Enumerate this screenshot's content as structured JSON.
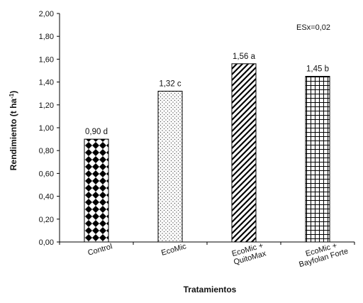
{
  "chart_data": {
    "type": "bar",
    "xlabel": "Tratamientos",
    "ylabel": "Rendimiento (t ha⁻¹)",
    "ylim": [
      0,
      2.0
    ],
    "yticks": [
      "0,00",
      "0,20",
      "0,40",
      "0,60",
      "0,80",
      "1,00",
      "1,20",
      "1,40",
      "1,60",
      "1,80",
      "2,00"
    ],
    "annotation": "ESx=0,02",
    "grid": false,
    "categories": [
      [
        "Control"
      ],
      [
        "EcoMic"
      ],
      [
        "EcoMic +",
        "QuitoMax"
      ],
      [
        "EcoMic +",
        "Bayfolan Forte"
      ]
    ],
    "values": [
      0.9,
      1.32,
      1.56,
      1.45
    ],
    "data_labels": [
      "0,90 d",
      "1,32 c",
      "1,56 a",
      "1,45 b"
    ],
    "patterns": [
      "checker-diamond",
      "dots",
      "diagonal-hatch",
      "grid-hatch"
    ]
  }
}
